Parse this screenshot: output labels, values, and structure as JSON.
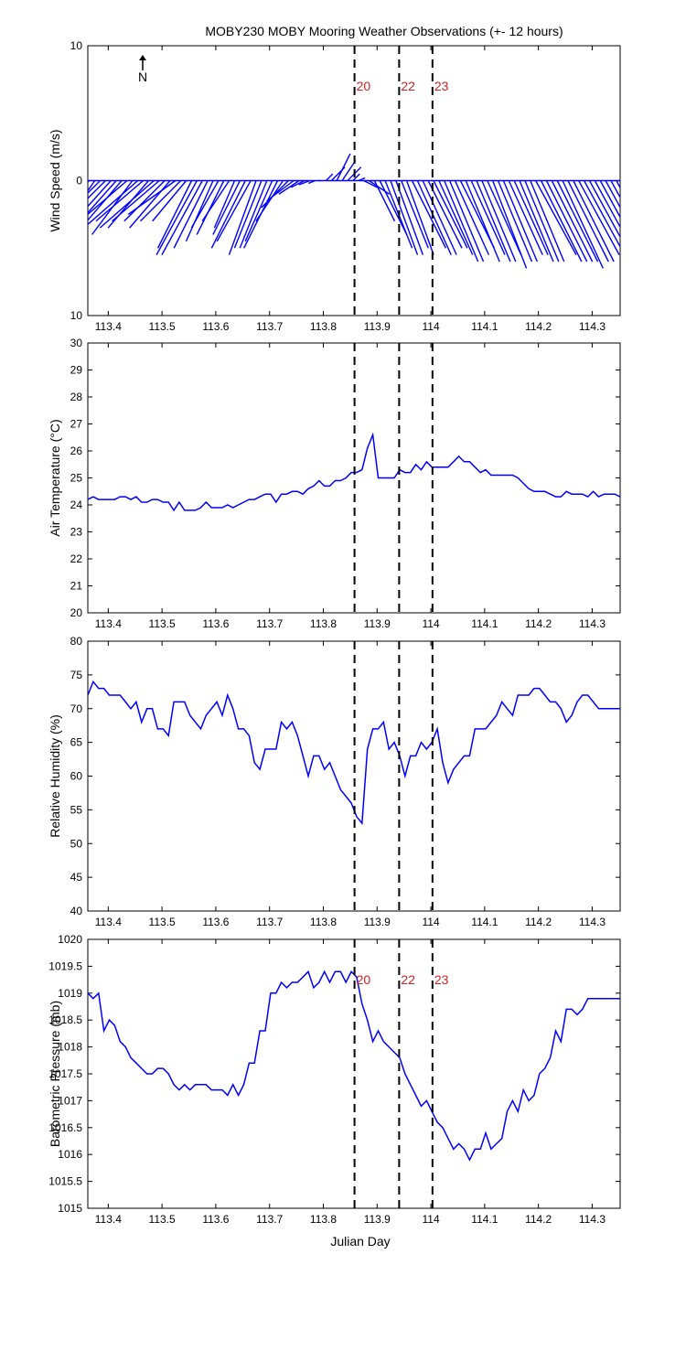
{
  "title": "MOBY230 MOBY Mooring Weather Observations (+- 12 hours)",
  "xlabel": "Julian Day",
  "north_label": "N",
  "markers": [
    {
      "x": 113.858,
      "label": "20"
    },
    {
      "x": 113.941,
      "label": "22"
    },
    {
      "x": 114.003,
      "label": "23"
    }
  ],
  "marker_label_panels": [
    0,
    3
  ],
  "colors": {
    "line": "#0000ff",
    "marker_text": "#cc2222",
    "axis": "#000000"
  },
  "xlim": [
    113.362,
    114.352
  ],
  "xticks": [
    113.4,
    113.5,
    113.6,
    113.7,
    113.8,
    113.9,
    114,
    114.1,
    114.2,
    114.3
  ],
  "xtick_labels": [
    "113.4",
    "113.5",
    "113.6",
    "113.7",
    "113.8",
    "113.9",
    "114",
    "114.1",
    "114.2",
    "114.3"
  ],
  "chart_data": [
    {
      "type": "line",
      "subtype": "wind-barbs",
      "ylabel": "Wind Speed (m/s)",
      "ylim": [
        -10,
        10
      ],
      "yticks": [
        -10,
        0,
        10
      ],
      "ytick_labels": [
        "10",
        "0",
        "10"
      ],
      "x": [
        113.365,
        113.375,
        113.385,
        113.395,
        113.405,
        113.415,
        113.425,
        113.435,
        113.445,
        113.455,
        113.465,
        113.475,
        113.485,
        113.495,
        113.505,
        113.515,
        113.525,
        113.535,
        113.545,
        113.555,
        113.565,
        113.575,
        113.585,
        113.595,
        113.605,
        113.615,
        113.625,
        113.635,
        113.645,
        113.655,
        113.665,
        113.675,
        113.685,
        113.695,
        113.705,
        113.715,
        113.725,
        113.735,
        113.745,
        113.755,
        113.765,
        113.775,
        113.785,
        113.795,
        113.805,
        113.815,
        113.825,
        113.835,
        113.845,
        113.855,
        113.865,
        113.875,
        113.885,
        113.895,
        113.905,
        113.915,
        113.925,
        113.935,
        113.945,
        113.955,
        113.965,
        113.975,
        113.985,
        113.995,
        114.005,
        114.015,
        114.025,
        114.035,
        114.045,
        114.055,
        114.065,
        114.075,
        114.085,
        114.095,
        114.105,
        114.115,
        114.125,
        114.135,
        114.145,
        114.155,
        114.165,
        114.175,
        114.185,
        114.195,
        114.205,
        114.215,
        114.225,
        114.235,
        114.245,
        114.255,
        114.265,
        114.275,
        114.285,
        114.295,
        114.305,
        114.315,
        114.325,
        114.335,
        114.345
      ],
      "u": [
        6.0,
        4.5,
        4.0,
        3.5,
        4.5,
        4.0,
        3.0,
        3.5,
        3.0,
        4.0,
        3.5,
        3.0,
        4.0,
        3.5,
        3.0,
        3.0,
        3.5,
        3.0,
        2.5,
        2.5,
        3.0,
        3.0,
        2.5,
        2.0,
        2.0,
        2.0,
        2.0,
        1.5,
        2.0,
        2.5,
        2.5,
        2.0,
        2.0,
        2.0,
        2.0,
        2.5,
        2.0,
        2.0,
        2.0,
        1.5,
        1.0,
        0.8,
        0.5,
        0.2,
        -0.5,
        -1.0,
        -1.0,
        -1.0,
        -1.0,
        -0.5,
        -0.5,
        -1.0,
        -1.5,
        -1.5,
        -2.0,
        -2.0,
        -2.0,
        -2.0,
        -2.0,
        -2.0,
        -2.5,
        -2.5,
        -2.5,
        -2.5,
        -2.5,
        -2.5,
        -2.5,
        -2.5,
        -2.5,
        -2.5,
        -2.5,
        -2.5,
        -2.5,
        -2.5,
        -2.5,
        -2.5,
        -2.5,
        -2.5,
        -2.5,
        -2.5,
        -2.5,
        -2.5,
        -2.5,
        -3.0,
        -3.0,
        -3.0,
        -3.0,
        -3.0,
        -3.0,
        -3.0,
        -3.0,
        -3.0,
        -3.0,
        -3.0,
        -3.0,
        -3.0,
        -3.0,
        -3.0,
        -3.0
      ],
      "v": [
        -5.0,
        -6.5,
        -4.0,
        -3.5,
        -5.0,
        -4.5,
        -3.5,
        -3.0,
        -4.0,
        -3.5,
        -3.0,
        -3.5,
        -3.5,
        -3.0,
        -3.0,
        -3.5,
        -2.5,
        -3.0,
        -3.0,
        -5.0,
        -5.5,
        -5.5,
        -5.0,
        -4.5,
        -3.5,
        -4.0,
        -3.0,
        -3.5,
        -4.0,
        -5.0,
        -4.5,
        -5.5,
        -5.0,
        -5.0,
        -4.5,
        -5.0,
        -3.0,
        -2.0,
        -1.5,
        -1.0,
        -0.5,
        -0.3,
        -0.2,
        0.0,
        0.5,
        1.0,
        2.0,
        1.5,
        1.0,
        0.5,
        0.2,
        -0.5,
        -1.0,
        -3.0,
        -4.0,
        -5.0,
        -5.5,
        -5.5,
        -5.0,
        -5.5,
        -5.0,
        -5.5,
        -5.5,
        -5.0,
        -5.0,
        -5.5,
        -6.0,
        -6.0,
        -5.5,
        -5.0,
        -6.0,
        -5.5,
        -6.0,
        -6.0,
        -5.5,
        -6.5,
        -6.0,
        -6.0,
        -5.5,
        -5.5,
        -6.0,
        -6.0,
        -6.0,
        -5.5,
        -6.0,
        -6.0,
        -6.0,
        -6.0,
        -6.5,
        -6.0,
        -6.0,
        -5.5,
        -5.5,
        -5.5,
        -5.5,
        -5.5,
        -5.5,
        -5.5,
        -5.5
      ]
    },
    {
      "type": "line",
      "ylabel": "Air Temperature (°C)",
      "ylim": [
        20,
        30
      ],
      "yticks": [
        20,
        21,
        22,
        23,
        24,
        25,
        26,
        27,
        28,
        29,
        30
      ],
      "ytick_labels": [
        "20",
        "21",
        "22",
        "23",
        "24",
        "25",
        "26",
        "27",
        "28",
        "29",
        "30"
      ],
      "x": [
        113.362,
        113.372,
        113.382,
        113.392,
        113.402,
        113.412,
        113.422,
        113.432,
        113.442,
        113.452,
        113.462,
        113.472,
        113.482,
        113.492,
        113.502,
        113.512,
        113.522,
        113.532,
        113.542,
        113.552,
        113.562,
        113.572,
        113.582,
        113.592,
        113.602,
        113.612,
        113.622,
        113.632,
        113.642,
        113.652,
        113.662,
        113.672,
        113.682,
        113.692,
        113.702,
        113.712,
        113.722,
        113.732,
        113.742,
        113.752,
        113.762,
        113.772,
        113.782,
        113.792,
        113.802,
        113.812,
        113.822,
        113.832,
        113.842,
        113.852,
        113.862,
        113.872,
        113.882,
        113.892,
        113.902,
        113.912,
        113.922,
        113.932,
        113.942,
        113.952,
        113.962,
        113.972,
        113.982,
        113.992,
        114.002,
        114.012,
        114.022,
        114.032,
        114.042,
        114.052,
        114.062,
        114.072,
        114.082,
        114.092,
        114.102,
        114.112,
        114.122,
        114.132,
        114.142,
        114.152,
        114.162,
        114.172,
        114.182,
        114.192,
        114.202,
        114.212,
        114.222,
        114.232,
        114.242,
        114.252,
        114.262,
        114.272,
        114.282,
        114.292,
        114.302,
        114.312,
        114.322,
        114.332,
        114.342,
        114.352
      ],
      "y": [
        24.2,
        24.3,
        24.2,
        24.2,
        24.2,
        24.2,
        24.3,
        24.3,
        24.2,
        24.3,
        24.1,
        24.1,
        24.2,
        24.2,
        24.1,
        24.1,
        23.8,
        24.1,
        23.8,
        23.8,
        23.8,
        23.9,
        24.1,
        23.9,
        23.9,
        23.9,
        24.0,
        23.9,
        24.0,
        24.1,
        24.2,
        24.2,
        24.3,
        24.4,
        24.4,
        24.1,
        24.4,
        24.4,
        24.5,
        24.5,
        24.4,
        24.6,
        24.7,
        24.9,
        24.7,
        24.7,
        24.9,
        24.9,
        25.0,
        25.2,
        25.2,
        25.3,
        26.1,
        26.6,
        25.0,
        25.0,
        25.0,
        25.0,
        25.3,
        25.2,
        25.2,
        25.5,
        25.3,
        25.6,
        25.4,
        25.4,
        25.4,
        25.4,
        25.6,
        25.8,
        25.6,
        25.6,
        25.4,
        25.2,
        25.3,
        25.1,
        25.1,
        25.1,
        25.1,
        25.1,
        25.0,
        24.8,
        24.6,
        24.5,
        24.5,
        24.5,
        24.4,
        24.3,
        24.3,
        24.5,
        24.4,
        24.4,
        24.4,
        24.3,
        24.5,
        24.3,
        24.4,
        24.4,
        24.4,
        24.3
      ]
    },
    {
      "type": "line",
      "ylabel": "Relative Humidity (%)",
      "ylim": [
        40,
        80
      ],
      "yticks": [
        40,
        45,
        50,
        55,
        60,
        65,
        70,
        75,
        80
      ],
      "ytick_labels": [
        "40",
        "45",
        "50",
        "55",
        "60",
        "65",
        "70",
        "75",
        "80"
      ],
      "x": [
        113.362,
        113.372,
        113.382,
        113.392,
        113.402,
        113.412,
        113.422,
        113.432,
        113.442,
        113.452,
        113.462,
        113.472,
        113.482,
        113.492,
        113.502,
        113.512,
        113.522,
        113.532,
        113.542,
        113.552,
        113.562,
        113.572,
        113.582,
        113.592,
        113.602,
        113.612,
        113.622,
        113.632,
        113.642,
        113.652,
        113.662,
        113.672,
        113.682,
        113.692,
        113.702,
        113.712,
        113.722,
        113.732,
        113.742,
        113.752,
        113.762,
        113.772,
        113.782,
        113.792,
        113.802,
        113.812,
        113.822,
        113.832,
        113.842,
        113.852,
        113.862,
        113.872,
        113.882,
        113.892,
        113.902,
        113.912,
        113.922,
        113.932,
        113.942,
        113.952,
        113.962,
        113.972,
        113.982,
        113.992,
        114.002,
        114.012,
        114.022,
        114.032,
        114.042,
        114.052,
        114.062,
        114.072,
        114.082,
        114.092,
        114.102,
        114.112,
        114.122,
        114.132,
        114.142,
        114.152,
        114.162,
        114.172,
        114.182,
        114.192,
        114.202,
        114.212,
        114.222,
        114.232,
        114.242,
        114.252,
        114.262,
        114.272,
        114.282,
        114.292,
        114.302,
        114.312,
        114.322,
        114.332,
        114.342,
        114.352
      ],
      "y": [
        72,
        74,
        73,
        73,
        72,
        72,
        72,
        71,
        70,
        71,
        68,
        70,
        70,
        67,
        67,
        66,
        71,
        71,
        71,
        69,
        68,
        67,
        69,
        70,
        71,
        69,
        72,
        70,
        67,
        67,
        66,
        62,
        61,
        64,
        64,
        64,
        68,
        67,
        68,
        66,
        63,
        60,
        63,
        63,
        61,
        62,
        60,
        58,
        57,
        56,
        54,
        53,
        64,
        67,
        67,
        68,
        64,
        65,
        63,
        60,
        63,
        63,
        65,
        64,
        65,
        67,
        62,
        59,
        61,
        62,
        63,
        63,
        67,
        67,
        67,
        68,
        69,
        71,
        70,
        69,
        72,
        72,
        72,
        73,
        73,
        72,
        71,
        71,
        70,
        68,
        69,
        71,
        72,
        72,
        71,
        70,
        70,
        70,
        70,
        70
      ]
    },
    {
      "type": "line",
      "ylabel": "Barometric Pressure (mb)",
      "ylim": [
        1015,
        1020
      ],
      "yticks": [
        1015,
        1015.5,
        1016,
        1016.5,
        1017,
        1017.5,
        1018,
        1018.5,
        1019,
        1019.5,
        1020
      ],
      "ytick_labels": [
        "1015",
        "1015.5",
        "1016",
        "1016.5",
        "1017",
        "1017.5",
        "1018",
        "1018.5",
        "1019",
        "1019.5",
        "1020"
      ],
      "x": [
        113.362,
        113.372,
        113.382,
        113.392,
        113.402,
        113.412,
        113.422,
        113.432,
        113.442,
        113.452,
        113.462,
        113.472,
        113.482,
        113.492,
        113.502,
        113.512,
        113.522,
        113.532,
        113.542,
        113.552,
        113.562,
        113.572,
        113.582,
        113.592,
        113.602,
        113.612,
        113.622,
        113.632,
        113.642,
        113.652,
        113.662,
        113.672,
        113.682,
        113.692,
        113.702,
        113.712,
        113.722,
        113.732,
        113.742,
        113.752,
        113.762,
        113.772,
        113.782,
        113.792,
        113.802,
        113.812,
        113.822,
        113.832,
        113.842,
        113.852,
        113.862,
        113.872,
        113.882,
        113.892,
        113.902,
        113.912,
        113.922,
        113.932,
        113.942,
        113.952,
        113.962,
        113.972,
        113.982,
        113.992,
        114.002,
        114.012,
        114.022,
        114.032,
        114.042,
        114.052,
        114.062,
        114.072,
        114.082,
        114.092,
        114.102,
        114.112,
        114.122,
        114.132,
        114.142,
        114.152,
        114.162,
        114.172,
        114.182,
        114.192,
        114.202,
        114.212,
        114.222,
        114.232,
        114.242,
        114.252,
        114.262,
        114.272,
        114.282,
        114.292,
        114.302,
        114.312,
        114.322,
        114.332,
        114.342,
        114.352
      ],
      "y": [
        1019.0,
        1018.9,
        1019.0,
        1018.3,
        1018.5,
        1018.4,
        1018.1,
        1018.0,
        1017.8,
        1017.7,
        1017.6,
        1017.5,
        1017.5,
        1017.6,
        1017.6,
        1017.5,
        1017.3,
        1017.2,
        1017.3,
        1017.2,
        1017.3,
        1017.3,
        1017.3,
        1017.2,
        1017.2,
        1017.2,
        1017.1,
        1017.3,
        1017.1,
        1017.3,
        1017.7,
        1017.7,
        1018.3,
        1018.3,
        1019.0,
        1019.0,
        1019.2,
        1019.1,
        1019.2,
        1019.2,
        1019.3,
        1019.4,
        1019.1,
        1019.2,
        1019.4,
        1019.2,
        1019.4,
        1019.4,
        1019.2,
        1019.4,
        1019.3,
        1018.8,
        1018.5,
        1018.1,
        1018.3,
        1018.1,
        1018.0,
        1017.9,
        1017.8,
        1017.5,
        1017.3,
        1017.1,
        1016.9,
        1017.0,
        1016.8,
        1016.6,
        1016.5,
        1016.3,
        1016.1,
        1016.2,
        1016.1,
        1015.9,
        1016.1,
        1016.1,
        1016.4,
        1016.1,
        1016.2,
        1016.3,
        1016.8,
        1017.0,
        1016.8,
        1017.2,
        1017.0,
        1017.1,
        1017.5,
        1017.6,
        1017.8,
        1018.3,
        1018.1,
        1018.7,
        1018.7,
        1018.6,
        1018.7,
        1018.9,
        1018.9,
        1018.9,
        1018.9,
        1018.9,
        1018.9,
        1018.9
      ]
    }
  ]
}
